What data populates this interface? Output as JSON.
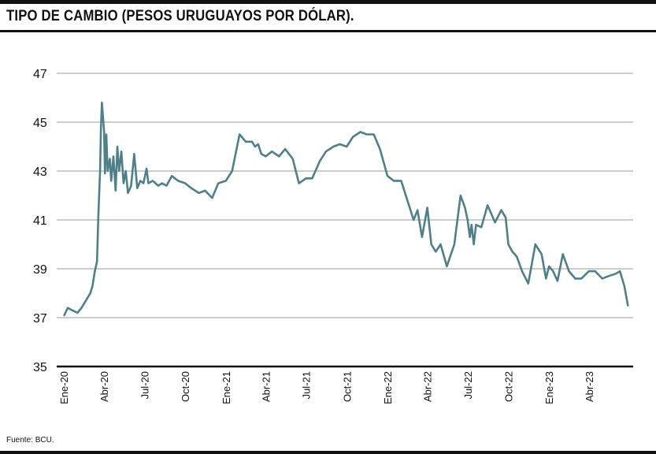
{
  "title": "TIPO DE CAMBIO (PESOS URUGUAYOS POR DÓLAR).",
  "source": "Fuente: BCU.",
  "colors": {
    "line": "#4f7f88",
    "grid": "#9a9a9a",
    "axis": "#111111"
  },
  "chart_data": {
    "type": "line",
    "title": "TIPO DE CAMBIO (PESOS URUGUAYOS POR DÓLAR).",
    "xlabel": "",
    "ylabel": "",
    "ylim": [
      35,
      47
    ],
    "yticks": [
      "35",
      "37",
      "39",
      "41",
      "43",
      "45",
      "47"
    ],
    "xtick_labels": [
      "Ene-20",
      "Abr-20",
      "Jul-20",
      "Oct-20",
      "Ene-21",
      "Abr-21",
      "Jul-21",
      "Oct-21",
      "Ene-22",
      "Abr-22",
      "Jul-22",
      "Oct-22",
      "Ene-23",
      "Abr-23"
    ],
    "grid": true,
    "x": [
      "2020-01-02",
      "2020-01-10",
      "2020-01-20",
      "2020-02-01",
      "2020-02-10",
      "2020-02-20",
      "2020-03-01",
      "2020-03-06",
      "2020-03-11",
      "2020-03-16",
      "2020-03-19",
      "2020-03-23",
      "2020-03-25",
      "2020-03-27",
      "2020-04-01",
      "2020-04-03",
      "2020-04-06",
      "2020-04-09",
      "2020-04-14",
      "2020-04-17",
      "2020-04-22",
      "2020-04-27",
      "2020-05-01",
      "2020-05-05",
      "2020-05-10",
      "2020-05-15",
      "2020-05-20",
      "2020-05-25",
      "2020-06-01",
      "2020-06-08",
      "2020-06-15",
      "2020-06-22",
      "2020-06-29",
      "2020-07-06",
      "2020-07-10",
      "2020-07-20",
      "2020-08-01",
      "2020-08-10",
      "2020-08-20",
      "2020-09-01",
      "2020-09-15",
      "2020-10-01",
      "2020-10-15",
      "2020-11-01",
      "2020-11-15",
      "2020-12-01",
      "2020-12-15",
      "2021-01-01",
      "2021-01-15",
      "2021-02-01",
      "2021-02-15",
      "2021-03-01",
      "2021-03-08",
      "2021-03-15",
      "2021-03-22",
      "2021-04-01",
      "2021-04-15",
      "2021-05-01",
      "2021-05-15",
      "2021-06-01",
      "2021-06-15",
      "2021-07-01",
      "2021-07-15",
      "2021-08-01",
      "2021-08-15",
      "2021-09-01",
      "2021-09-15",
      "2021-10-01",
      "2021-10-15",
      "2021-11-01",
      "2021-11-15",
      "2021-12-01",
      "2021-12-15",
      "2022-01-01",
      "2022-01-15",
      "2022-02-01",
      "2022-02-15",
      "2022-03-01",
      "2022-03-10",
      "2022-03-20",
      "2022-04-01",
      "2022-04-10",
      "2022-04-20",
      "2022-05-01",
      "2022-05-15",
      "2022-06-01",
      "2022-06-15",
      "2022-06-25",
      "2022-07-01",
      "2022-07-06",
      "2022-07-10",
      "2022-07-15",
      "2022-07-20",
      "2022-08-01",
      "2022-08-15",
      "2022-09-01",
      "2022-09-15",
      "2022-09-25",
      "2022-10-01",
      "2022-10-10",
      "2022-10-20",
      "2022-11-01",
      "2022-11-15",
      "2022-12-01",
      "2022-12-15",
      "2022-12-25",
      "2023-01-01",
      "2023-01-10",
      "2023-01-20",
      "2023-02-01",
      "2023-02-15",
      "2023-03-01",
      "2023-03-15",
      "2023-04-01",
      "2023-04-15",
      "2023-05-01",
      "2023-05-15",
      "2023-06-01",
      "2023-06-10",
      "2023-06-20",
      "2023-06-28"
    ],
    "series": [
      {
        "values": [
          37.1,
          37.4,
          37.3,
          37.2,
          37.4,
          37.7,
          38.0,
          38.3,
          38.9,
          39.3,
          41.2,
          43.0,
          44.8,
          45.8,
          44.6,
          42.9,
          44.5,
          43.0,
          43.5,
          42.6,
          43.6,
          42.2,
          44.0,
          43.0,
          43.8,
          42.5,
          43.0,
          42.1,
          42.4,
          43.7,
          42.3,
          42.6,
          42.5,
          43.1,
          42.5,
          42.6,
          42.4,
          42.5,
          42.4,
          42.8,
          42.6,
          42.5,
          42.3,
          42.1,
          42.2,
          41.9,
          42.5,
          42.6,
          43.0,
          44.5,
          44.2,
          44.2,
          44.0,
          44.1,
          43.7,
          43.6,
          43.8,
          43.6,
          43.9,
          43.5,
          42.5,
          42.7,
          42.7,
          43.4,
          43.8,
          44.0,
          44.1,
          44.0,
          44.4,
          44.6,
          44.5,
          44.5,
          43.9,
          42.8,
          42.6,
          42.6,
          41.8,
          41.0,
          41.4,
          40.3,
          41.5,
          40.0,
          39.7,
          40.0,
          39.1,
          40.0,
          42.0,
          41.5,
          41.0,
          40.3,
          40.8,
          40.0,
          40.8,
          40.7,
          41.6,
          40.9,
          41.4,
          41.1,
          40.0,
          39.7,
          39.5,
          38.9,
          38.4,
          40.0,
          39.6,
          38.6,
          39.1,
          38.9,
          38.5,
          39.6,
          38.9,
          38.6,
          38.6,
          38.9,
          38.9,
          38.6,
          38.7,
          38.8,
          38.9,
          38.3,
          37.5
        ]
      }
    ]
  }
}
